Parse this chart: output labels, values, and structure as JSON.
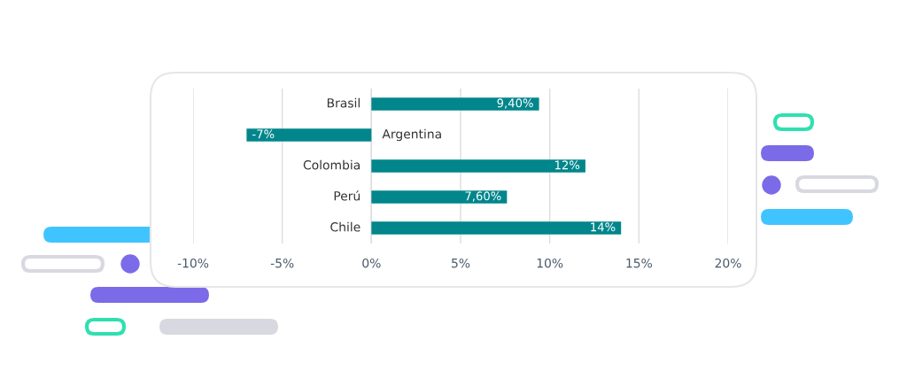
{
  "chart_data": {
    "type": "bar",
    "orientation": "horizontal",
    "categories": [
      "Brasil",
      "Argentina",
      "Colombia",
      "Perú",
      "Chile"
    ],
    "values": [
      9.4,
      -7,
      12,
      7.6,
      14
    ],
    "value_labels": [
      "9,40%",
      "-7%",
      "12%",
      "7,60%",
      "14%"
    ],
    "color": "#00868b",
    "xlim": [
      -10,
      20
    ],
    "xticks": [
      {
        "value": -10,
        "label": "-10%"
      },
      {
        "value": -5,
        "label": "-5%"
      },
      {
        "value": 0,
        "label": "0%"
      },
      {
        "value": 5,
        "label": "5%"
      },
      {
        "value": 10,
        "label": "10%"
      },
      {
        "value": 15,
        "label": "15%"
      },
      {
        "value": 20,
        "label": "20%"
      }
    ],
    "grid": "x"
  }
}
